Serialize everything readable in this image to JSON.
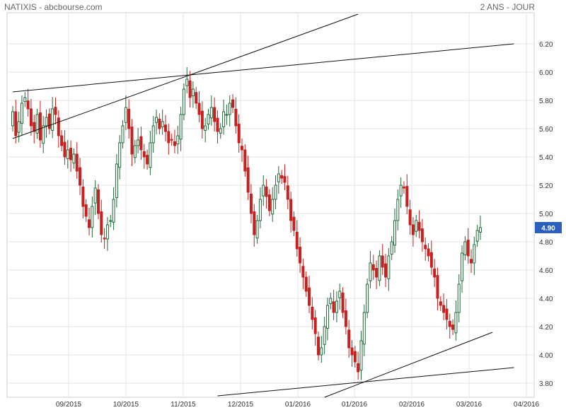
{
  "header": {
    "title": "NATIXIS - abcbourse.com",
    "period": "2 ANS - JOUR"
  },
  "colors": {
    "up": "#1f6b3a",
    "down": "#c8201e",
    "grid": "#e4e4e4",
    "trend": "#111111",
    "last_price_bg": "#2a5fbf"
  },
  "chart_data": {
    "type": "candlestick",
    "title": "NATIXIS - abcbourse.com",
    "period": "2 ANS - JOUR",
    "ylim": [
      3.7,
      6.38
    ],
    "yticks": [
      "3.80",
      "4.00",
      "4.20",
      "4.40",
      "4.60",
      "4.80",
      "5.00",
      "5.20",
      "5.40",
      "5.60",
      "5.80",
      "6.00",
      "6.20"
    ],
    "xticks": [
      "09/2015",
      "10/2015",
      "11/2015",
      "12/2015",
      "01/2016",
      "01/2016",
      "02/2016",
      "03/2016",
      "04/2016"
    ],
    "last_price": "4.90",
    "grid": true,
    "closes": [
      5.72,
      5.55,
      5.65,
      5.78,
      5.82,
      5.74,
      5.62,
      5.58,
      5.7,
      5.52,
      5.62,
      5.68,
      5.6,
      5.74,
      5.7,
      5.55,
      5.48,
      5.4,
      5.45,
      5.38,
      5.42,
      5.3,
      5.2,
      5.05,
      4.98,
      4.9,
      5.05,
      5.18,
      5.0,
      4.85,
      4.82,
      4.92,
      4.95,
      5.1,
      5.35,
      5.5,
      5.62,
      5.75,
      5.6,
      5.42,
      5.48,
      5.52,
      5.45,
      5.4,
      5.35,
      5.5,
      5.62,
      5.68,
      5.6,
      5.65,
      5.58,
      5.5,
      5.52,
      5.48,
      5.55,
      5.7,
      5.88,
      5.95,
      5.82,
      5.88,
      5.78,
      5.7,
      5.6,
      5.62,
      5.7,
      5.75,
      5.65,
      5.58,
      5.6,
      5.72,
      5.7,
      5.78,
      5.75,
      5.62,
      5.5,
      5.45,
      5.3,
      5.15,
      5.0,
      4.85,
      4.95,
      5.1,
      5.2,
      5.12,
      5.02,
      5.1,
      5.2,
      5.28,
      5.25,
      5.22,
      5.1,
      4.95,
      4.88,
      4.75,
      4.65,
      4.55,
      4.45,
      4.35,
      4.25,
      4.15,
      4.0,
      4.05,
      4.2,
      4.35,
      4.4,
      4.3,
      4.38,
      4.45,
      4.3,
      4.2,
      4.05,
      4.0,
      3.95,
      3.88,
      4.1,
      4.3,
      4.5,
      4.65,
      4.6,
      4.55,
      4.7,
      4.62,
      4.55,
      4.7,
      4.8,
      4.95,
      5.1,
      5.2,
      5.18,
      5.05,
      4.92,
      4.85,
      4.95,
      4.88,
      4.8,
      4.75,
      4.7,
      4.62,
      4.55,
      4.4,
      4.35,
      4.3,
      4.25,
      4.2,
      4.18,
      4.3,
      4.5,
      4.72,
      4.8,
      4.7,
      4.65,
      4.78,
      4.88,
      4.9
    ],
    "trendlines": [
      {
        "x1": 0.0,
        "y1": 5.86,
        "x2": 58.0,
        "y2": 5.98
      },
      {
        "x1": 58.0,
        "y1": 5.98,
        "x2": 164.0,
        "y2": 6.2
      },
      {
        "x1": 0.0,
        "y1": 5.53,
        "x2": 58.0,
        "y2": 5.98
      },
      {
        "x1": 58.0,
        "y1": 5.98,
        "x2": 113.0,
        "y2": 6.41
      },
      {
        "x1": 67.0,
        "y1": 3.71,
        "x2": 164.0,
        "y2": 3.91
      },
      {
        "x1": 102.0,
        "y1": 3.7,
        "x2": 157.0,
        "y2": 4.16
      }
    ]
  }
}
